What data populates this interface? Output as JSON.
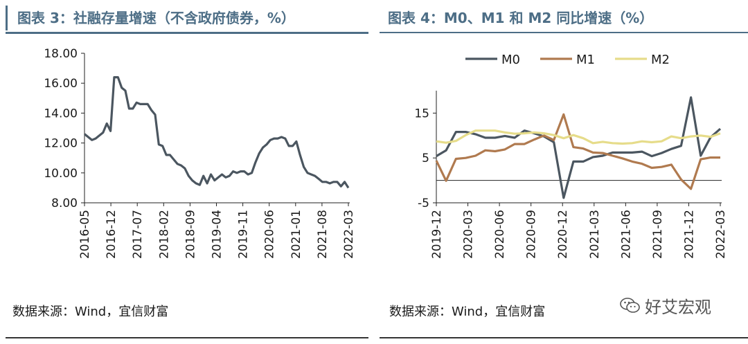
{
  "left": {
    "title": "图表 3：社融存量增速（不含政府债券，%）",
    "source": "数据来源：Wind，宜信财富",
    "chart_data": {
      "type": "line",
      "title": "图表 3：社融存量增速（不含政府债券，%）",
      "ylim": [
        8,
        18
      ],
      "yticks": [
        "8.00",
        "10.00",
        "12.00",
        "14.00",
        "16.00",
        "18.00"
      ],
      "xticks": [
        "2016-05",
        "2016-12",
        "2017-07",
        "2018-02",
        "2018-09",
        "2019-04",
        "2019-11",
        "2020-06",
        "2021-01",
        "2021-08",
        "2022-03"
      ],
      "series": [
        {
          "name": "",
          "color": "#4b5660",
          "values": [
            12.6,
            12.4,
            12.2,
            12.3,
            12.5,
            12.7,
            13.3,
            12.8,
            16.4,
            16.4,
            15.7,
            15.5,
            14.3,
            14.3,
            14.7,
            14.6,
            14.6,
            14.6,
            14.2,
            13.9,
            11.9,
            11.8,
            11.2,
            11.2,
            10.9,
            10.6,
            10.5,
            10.3,
            9.8,
            9.5,
            9.3,
            9.2,
            9.8,
            9.3,
            9.9,
            9.5,
            9.7,
            9.9,
            9.7,
            9.8,
            10.1,
            10.0,
            10.1,
            10.1,
            9.9,
            10.0,
            10.7,
            11.3,
            11.7,
            11.9,
            12.2,
            12.3,
            12.3,
            12.4,
            12.3,
            11.8,
            11.8,
            12.1,
            11.2,
            10.4,
            10.0,
            9.9,
            9.8,
            9.6,
            9.4,
            9.4,
            9.3,
            9.4,
            9.4,
            9.1,
            9.4,
            9.0
          ]
        }
      ]
    }
  },
  "right": {
    "title": "图表 4：M0、M1 和 M2 同比增速（%）",
    "source": "数据来源：Wind，宜信财富",
    "chart_data": {
      "type": "line",
      "title": "图表 4：M0、M1 和 M2 同比增速（%）",
      "ylim": [
        -5,
        20
      ],
      "yticks": [
        "-5",
        "5",
        "15"
      ],
      "xticks": [
        "2019-12",
        "2020-03",
        "2020-06",
        "2020-09",
        "2020-12",
        "2021-03",
        "2021-06",
        "2021-09",
        "2021-12",
        "2022-03"
      ],
      "legend": "top",
      "series": [
        {
          "name": "M0",
          "color": "#4b5660",
          "values": [
            5.4,
            6.7,
            10.8,
            10.8,
            10.3,
            9.5,
            9.5,
            9.9,
            9.5,
            11.1,
            10.5,
            9.8,
            8.5,
            -3.9,
            4.2,
            4.2,
            5.2,
            5.5,
            6.2,
            6.2,
            6.2,
            6.4,
            5.4,
            6.1,
            7.0,
            7.7,
            18.5,
            5.5,
            9.6,
            11.5
          ]
        },
        {
          "name": "M1",
          "color": "#b07a4f",
          "values": [
            4.4,
            -0.1,
            4.8,
            5.0,
            5.5,
            6.7,
            6.5,
            6.9,
            8.1,
            8.1,
            9.1,
            10.0,
            9.0,
            14.7,
            7.4,
            7.1,
            6.2,
            6.1,
            5.5,
            4.9,
            4.2,
            3.7,
            2.8,
            3.0,
            3.5,
            0.2,
            -1.9,
            4.7,
            5.1,
            5.1
          ]
        },
        {
          "name": "M2",
          "color": "#e6dc8a",
          "values": [
            8.7,
            8.4,
            8.8,
            10.1,
            11.1,
            11.1,
            11.1,
            10.7,
            10.4,
            10.5,
            10.7,
            10.5,
            10.1,
            9.4,
            10.1,
            9.4,
            8.3,
            8.6,
            8.3,
            8.2,
            8.3,
            8.7,
            8.5,
            8.7,
            9.8,
            9.4,
            9.8,
            10.0,
            9.7,
            10.5
          ]
        }
      ]
    }
  },
  "watermark": {
    "text": "好艾宏观",
    "icon": "wechat-icon"
  }
}
